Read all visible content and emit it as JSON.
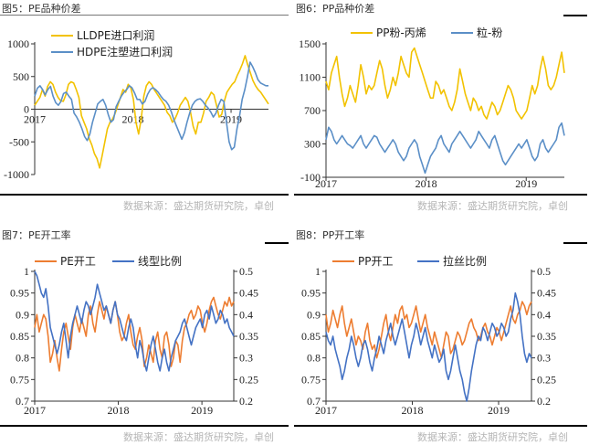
{
  "panels": [
    {
      "title": "图5：PE品种价差",
      "source": "数据来源：盛达期货研究院，卓创"
    },
    {
      "title": "图6：PP品种价差",
      "source": "数据来源：盛达期货研究院，卓创"
    },
    {
      "title": "图7：PE开工率",
      "source": "数据来源：盛达期货研究院，卓创"
    },
    {
      "title": "图8：PP开工率",
      "source": "数据来源：盛达期货研究院，卓创"
    }
  ],
  "colors": {
    "orange": "#F2C200",
    "blue": "#5B8FC7",
    "orange2": "#ED7D31",
    "blue2": "#4472C4"
  },
  "chart_data": [
    {
      "type": "line",
      "title": "",
      "x_ticks": [
        "2017",
        "2018",
        "2019"
      ],
      "ylim": [
        -1000,
        1000
      ],
      "y_ticks": [
        -1000,
        -500,
        0,
        500,
        1000
      ],
      "legend": "top",
      "series": [
        {
          "name": "LLDPE进口利润",
          "values": [
            60,
            120,
            180,
            300,
            200,
            350,
            420,
            380,
            260,
            180,
            130,
            120,
            220,
            380,
            420,
            400,
            300,
            180,
            -100,
            -200,
            -300,
            -450,
            -550,
            -680,
            -760,
            -900,
            -700,
            -500,
            -300,
            -200,
            -150,
            -60,
            60,
            180,
            300,
            260,
            380,
            330,
            150,
            -200,
            -380,
            -150,
            200,
            360,
            420,
            380,
            300,
            240,
            180,
            120,
            60,
            -50,
            -100,
            -200,
            -150,
            -60,
            60,
            120,
            180,
            120,
            -50,
            -260,
            -380,
            -200,
            -200,
            -60,
            120,
            180,
            260,
            220,
            60,
            -120,
            -80,
            120,
            260,
            320,
            380,
            420,
            520,
            600,
            700,
            820,
            680,
            560,
            440,
            360,
            300,
            260,
            200,
            140,
            80
          ]
        },
        {
          "name": "HDPE注塑进口利润",
          "values": [
            200,
            320,
            360,
            300,
            220,
            300,
            350,
            200,
            100,
            60,
            120,
            240,
            260,
            200,
            150,
            -60,
            -120,
            -200,
            -300,
            -420,
            -480,
            -380,
            -200,
            -60,
            80,
            120,
            150,
            60,
            -80,
            -200,
            -160,
            40,
            120,
            200,
            260,
            300,
            360,
            330,
            250,
            150,
            150,
            80,
            120,
            230,
            300,
            330,
            300,
            260,
            200,
            150,
            120,
            60,
            -40,
            -160,
            -260,
            -360,
            -460,
            -360,
            -200,
            -60,
            60,
            120,
            150,
            160,
            120,
            60,
            20,
            -40,
            -120,
            -60,
            60,
            150,
            120,
            -200,
            -500,
            -620,
            -580,
            -300,
            -100,
            150,
            300,
            500,
            720,
            650,
            560,
            450,
            400,
            380,
            360,
            360
          ]
        }
      ]
    },
    {
      "type": "line",
      "title": "",
      "x_ticks": [
        "2017",
        "2018",
        "2019"
      ],
      "ylim": [
        -100,
        1500
      ],
      "y_ticks": [
        -100,
        300,
        700,
        1100,
        1500
      ],
      "legend": "top",
      "series": [
        {
          "name": "PP粉-丙烯",
          "values": [
            1050,
            950,
            1150,
            1250,
            1350,
            1100,
            900,
            750,
            850,
            1000,
            900,
            800,
            1000,
            1250,
            1100,
            900,
            1000,
            950,
            1000,
            1150,
            1300,
            1200,
            1000,
            850,
            950,
            1100,
            1000,
            1150,
            1350,
            1250,
            1150,
            1100,
            1400,
            1450,
            1350,
            1250,
            1150,
            1050,
            950,
            850,
            850,
            1050,
            1000,
            900,
            950,
            850,
            750,
            700,
            800,
            950,
            1200,
            1050,
            900,
            800,
            700,
            850,
            800,
            700,
            750,
            650,
            600,
            700,
            800,
            750,
            650,
            700,
            800,
            900,
            1000,
            950,
            850,
            700,
            650,
            600,
            650,
            700,
            850,
            1000,
            900,
            1000,
            1200,
            1350,
            1200,
            1000,
            950,
            1000,
            1100,
            1250,
            1400,
            1150
          ]
        },
        {
          "name": "粒-粉",
          "values": [
            350,
            500,
            450,
            350,
            300,
            350,
            400,
            350,
            300,
            280,
            250,
            300,
            350,
            400,
            300,
            250,
            300,
            350,
            400,
            380,
            300,
            250,
            200,
            250,
            300,
            350,
            300,
            200,
            150,
            100,
            150,
            250,
            300,
            350,
            300,
            150,
            50,
            -50,
            50,
            150,
            200,
            250,
            350,
            400,
            300,
            250,
            200,
            300,
            350,
            400,
            450,
            400,
            350,
            300,
            250,
            300,
            350,
            450,
            400,
            350,
            300,
            250,
            350,
            400,
            300,
            200,
            100,
            50,
            100,
            150,
            200,
            250,
            300,
            250,
            300,
            350,
            250,
            150,
            100,
            150,
            300,
            350,
            250,
            200,
            250,
            300,
            350,
            500,
            550,
            400
          ]
        }
      ]
    },
    {
      "type": "line",
      "title": "",
      "x_ticks": [
        "2017",
        "2018",
        "2019"
      ],
      "ylim": [
        0.7,
        1
      ],
      "y_ticks": [
        0.7,
        0.75,
        0.8,
        0.85,
        0.9,
        0.95,
        1
      ],
      "y2lim": [
        0.2,
        0.5
      ],
      "y2_ticks": [
        0.2,
        0.25,
        0.3,
        0.35,
        0.4,
        0.45,
        0.5
      ],
      "legend": "top",
      "series": [
        {
          "name": "PE开工",
          "axis": "left",
          "values": [
            0.87,
            0.9,
            0.86,
            0.88,
            0.9,
            0.89,
            0.85,
            0.79,
            0.81,
            0.84,
            0.8,
            0.77,
            0.82,
            0.86,
            0.88,
            0.85,
            0.82,
            0.87,
            0.9,
            0.88,
            0.86,
            0.89,
            0.87,
            0.85,
            0.9,
            0.92,
            0.88,
            0.86,
            0.9,
            0.93,
            0.91,
            0.89,
            0.92,
            0.9,
            0.88,
            0.91,
            0.93,
            0.9,
            0.86,
            0.84,
            0.85,
            0.88,
            0.9,
            0.86,
            0.83,
            0.82,
            0.85,
            0.87,
            0.84,
            0.78,
            0.8,
            0.83,
            0.81,
            0.79,
            0.84,
            0.86,
            0.82,
            0.8,
            0.85,
            0.86,
            0.83,
            0.78,
            0.8,
            0.84,
            0.83,
            0.79,
            0.84,
            0.87,
            0.88,
            0.9,
            0.91,
            0.89,
            0.9,
            0.92,
            0.91,
            0.88,
            0.86,
            0.88,
            0.91,
            0.93,
            0.94,
            0.92,
            0.9,
            0.89,
            0.91,
            0.93,
            0.92,
            0.94,
            0.92,
            0.93
          ]
        },
        {
          "name": "线型比例",
          "axis": "right",
          "values": [
            0.5,
            0.49,
            0.47,
            0.45,
            0.44,
            0.46,
            0.42,
            0.37,
            0.35,
            0.33,
            0.31,
            0.33,
            0.36,
            0.38,
            0.34,
            0.3,
            0.35,
            0.38,
            0.4,
            0.42,
            0.4,
            0.38,
            0.41,
            0.43,
            0.42,
            0.4,
            0.42,
            0.44,
            0.47,
            0.45,
            0.43,
            0.41,
            0.42,
            0.4,
            0.38,
            0.41,
            0.43,
            0.4,
            0.39,
            0.37,
            0.35,
            0.34,
            0.37,
            0.39,
            0.37,
            0.33,
            0.3,
            0.34,
            0.32,
            0.29,
            0.27,
            0.3,
            0.33,
            0.35,
            0.32,
            0.29,
            0.27,
            0.3,
            0.32,
            0.29,
            0.27,
            0.3,
            0.32,
            0.34,
            0.35,
            0.36,
            0.38,
            0.39,
            0.37,
            0.35,
            0.33,
            0.35,
            0.37,
            0.38,
            0.39,
            0.37,
            0.4,
            0.41,
            0.39,
            0.42,
            0.4,
            0.38,
            0.39,
            0.41,
            0.4,
            0.38,
            0.39,
            0.37,
            0.36,
            0.35
          ]
        }
      ]
    },
    {
      "type": "line",
      "title": "",
      "x_ticks": [
        "2017",
        "2018",
        "2019"
      ],
      "ylim": [
        0.7,
        1
      ],
      "y_ticks": [
        0.7,
        0.75,
        0.8,
        0.85,
        0.9,
        0.95,
        1
      ],
      "y2lim": [
        0.2,
        0.5
      ],
      "y2_ticks": [
        0.2,
        0.25,
        0.3,
        0.35,
        0.4,
        0.45,
        0.5
      ],
      "legend": "top",
      "series": [
        {
          "name": "PP开工",
          "axis": "left",
          "values": [
            0.9,
            0.86,
            0.88,
            0.91,
            0.89,
            0.87,
            0.9,
            0.92,
            0.88,
            0.85,
            0.87,
            0.89,
            0.86,
            0.83,
            0.85,
            0.84,
            0.82,
            0.86,
            0.88,
            0.84,
            0.82,
            0.83,
            0.8,
            0.82,
            0.85,
            0.88,
            0.9,
            0.86,
            0.84,
            0.87,
            0.9,
            0.88,
            0.91,
            0.92,
            0.89,
            0.9,
            0.87,
            0.88,
            0.9,
            0.92,
            0.89,
            0.86,
            0.88,
            0.9,
            0.87,
            0.85,
            0.83,
            0.86,
            0.84,
            0.82,
            0.8,
            0.83,
            0.86,
            0.85,
            0.81,
            0.82,
            0.84,
            0.86,
            0.85,
            0.83,
            0.84,
            0.86,
            0.88,
            0.89,
            0.87,
            0.86,
            0.84,
            0.85,
            0.87,
            0.88,
            0.86,
            0.85,
            0.83,
            0.85,
            0.87,
            0.86,
            0.84,
            0.86,
            0.88,
            0.9,
            0.92,
            0.89,
            0.88,
            0.9,
            0.91,
            0.93,
            0.92,
            0.9,
            0.92,
            0.93
          ]
        },
        {
          "name": "拉丝比例",
          "axis": "right",
          "values": [
            0.36,
            0.34,
            0.33,
            0.35,
            0.32,
            0.3,
            0.28,
            0.25,
            0.27,
            0.3,
            0.32,
            0.35,
            0.33,
            0.3,
            0.28,
            0.3,
            0.33,
            0.34,
            0.32,
            0.29,
            0.27,
            0.3,
            0.32,
            0.35,
            0.33,
            0.31,
            0.34,
            0.36,
            0.38,
            0.35,
            0.33,
            0.35,
            0.37,
            0.39,
            0.36,
            0.33,
            0.3,
            0.33,
            0.35,
            0.38,
            0.36,
            0.33,
            0.35,
            0.37,
            0.34,
            0.32,
            0.3,
            0.33,
            0.31,
            0.29,
            0.3,
            0.32,
            0.27,
            0.25,
            0.27,
            0.3,
            0.33,
            0.3,
            0.27,
            0.25,
            0.22,
            0.2,
            0.23,
            0.27,
            0.3,
            0.33,
            0.35,
            0.34,
            0.37,
            0.36,
            0.34,
            0.36,
            0.38,
            0.37,
            0.35,
            0.36,
            0.38,
            0.37,
            0.35,
            0.36,
            0.39,
            0.41,
            0.45,
            0.43,
            0.4,
            0.35,
            0.31,
            0.29,
            0.31,
            0.3
          ]
        }
      ]
    }
  ]
}
